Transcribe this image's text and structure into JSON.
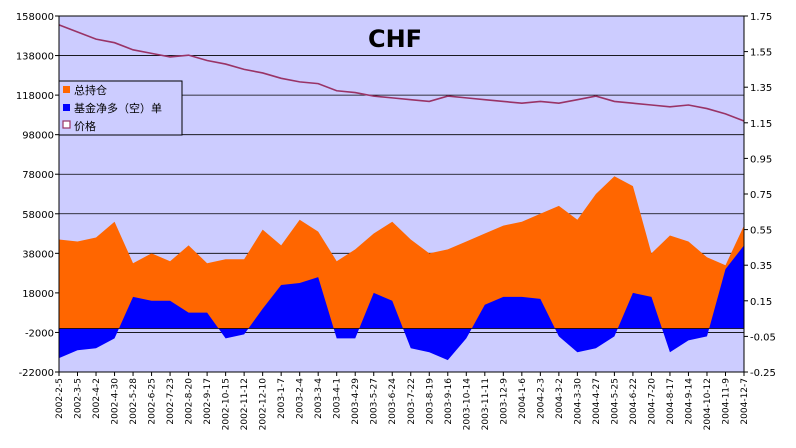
{
  "chart_data": {
    "type": "area",
    "title": "CHF",
    "x": [
      "2002-2-5",
      "2002-3-5",
      "2002-4-2",
      "2002-4-30",
      "2002-5-28",
      "2002-6-25",
      "2002-7-23",
      "2002-8-20",
      "2002-9-17",
      "2002-10-15",
      "2002-11-12",
      "2002-12-10",
      "2003-1-7",
      "2003-2-4",
      "2003-3-4",
      "2003-4-1",
      "2003-4-29",
      "2003-5-27",
      "2003-6-24",
      "2003-7-22",
      "2003-8-19",
      "2003-9-16",
      "2003-10-14",
      "2003-11-11",
      "2003-12-9",
      "2004-1-6",
      "2004-2-3",
      "2004-3-2",
      "2004-3-30",
      "2004-4-27",
      "2004-5-25",
      "2004-6-22",
      "2004-7-20",
      "2004-8-17",
      "2004-9-14",
      "2004-10-12",
      "2004-11-9",
      "2004-12-7"
    ],
    "left_axis": {
      "min": -22000,
      "max": 158000,
      "ticks": [
        158000,
        138000,
        118000,
        98000,
        78000,
        58000,
        38000,
        18000,
        -2000,
        -22000
      ]
    },
    "right_axis": {
      "min": -0.25,
      "max": 1.75,
      "ticks": [
        "1.75",
        "1.55",
        "1.35",
        "1.15",
        "0.95",
        "0.75",
        "0.55",
        "0.35",
        "0.15",
        "-0.05",
        "-0.25"
      ]
    },
    "grid": true,
    "legend_position": "top-left",
    "series": [
      {
        "name": "总持仓",
        "axis": "left",
        "color": "#ff6600",
        "values": [
          45000,
          44000,
          46000,
          54000,
          33000,
          38000,
          34000,
          42000,
          33000,
          35000,
          35000,
          50000,
          42000,
          55000,
          49000,
          34000,
          40000,
          48000,
          54000,
          45000,
          38000,
          40000,
          44000,
          48000,
          52000,
          54000,
          58000,
          62000,
          55000,
          68000,
          77000,
          72000,
          38000,
          47000,
          44000,
          36000,
          32000,
          52000
        ]
      },
      {
        "name": "基金净多（空）单",
        "axis": "left",
        "color": "#0000ff",
        "values": [
          -15000,
          -11000,
          -10000,
          -5000,
          16000,
          14000,
          14000,
          8000,
          8000,
          -5000,
          -3000,
          10000,
          22000,
          23000,
          26000,
          -5000,
          -5000,
          18000,
          14000,
          -10000,
          -12000,
          -16000,
          -5000,
          12000,
          16000,
          16000,
          15000,
          -4000,
          -12000,
          -10000,
          -4000,
          18000,
          16000,
          -12000,
          -6000,
          -4000,
          30000,
          42000
        ]
      },
      {
        "name": "价格",
        "axis": "right",
        "color": "#993366",
        "values": [
          1.7,
          1.66,
          1.62,
          1.6,
          1.56,
          1.54,
          1.52,
          1.53,
          1.5,
          1.48,
          1.45,
          1.43,
          1.4,
          1.38,
          1.37,
          1.33,
          1.32,
          1.3,
          1.29,
          1.28,
          1.27,
          1.3,
          1.29,
          1.28,
          1.27,
          1.26,
          1.27,
          1.26,
          1.28,
          1.3,
          1.27,
          1.26,
          1.25,
          1.24,
          1.25,
          1.23,
          1.2,
          1.16
        ]
      }
    ]
  }
}
